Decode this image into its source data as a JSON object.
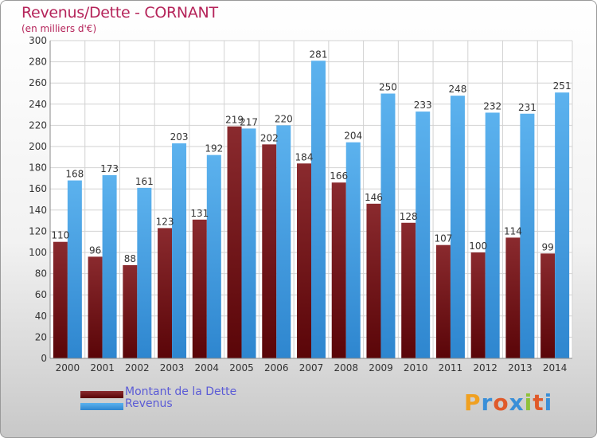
{
  "header": {
    "title": "Revenus/Dette - CORNANT",
    "subtitle": "(en milliers d'€)"
  },
  "colors": {
    "dette": "#7a1418",
    "revenus": "#4aa3e6",
    "text_accent": "#b5245a",
    "legend_text": "#5b5bd6"
  },
  "legend": {
    "items": [
      {
        "label": "Montant de la Dette",
        "color": "#7a1418"
      },
      {
        "label": "Revenus",
        "color": "#4aa3e6"
      }
    ]
  },
  "logo": {
    "text": "Proxiti",
    "letters": [
      "P",
      "r",
      "o",
      "x",
      "i",
      "t",
      "i"
    ],
    "letter_colors": [
      "#f0a020",
      "#3a8fd8",
      "#e05a2a",
      "#3a8fd8",
      "#8fc13a",
      "#e05a2a",
      "#3a8fd8"
    ]
  },
  "chart_data": {
    "type": "bar",
    "categories": [
      "2000",
      "2001",
      "2002",
      "2003",
      "2004",
      "2005",
      "2006",
      "2007",
      "2008",
      "2009",
      "2010",
      "2011",
      "2012",
      "2013",
      "2014"
    ],
    "series": [
      {
        "name": "Montant de la Dette",
        "values": [
          110,
          96,
          88,
          123,
          131,
          219,
          202,
          184,
          166,
          146,
          128,
          107,
          100,
          114,
          99
        ]
      },
      {
        "name": "Revenus",
        "values": [
          168,
          173,
          161,
          203,
          192,
          217,
          220,
          281,
          204,
          250,
          233,
          248,
          232,
          231,
          251
        ]
      }
    ],
    "ylim": [
      0,
      300
    ],
    "yticks": [
      0,
      20,
      40,
      60,
      80,
      100,
      120,
      140,
      160,
      180,
      200,
      220,
      240,
      260,
      280,
      300
    ],
    "grid": true,
    "legend_position": "bottom-left"
  }
}
